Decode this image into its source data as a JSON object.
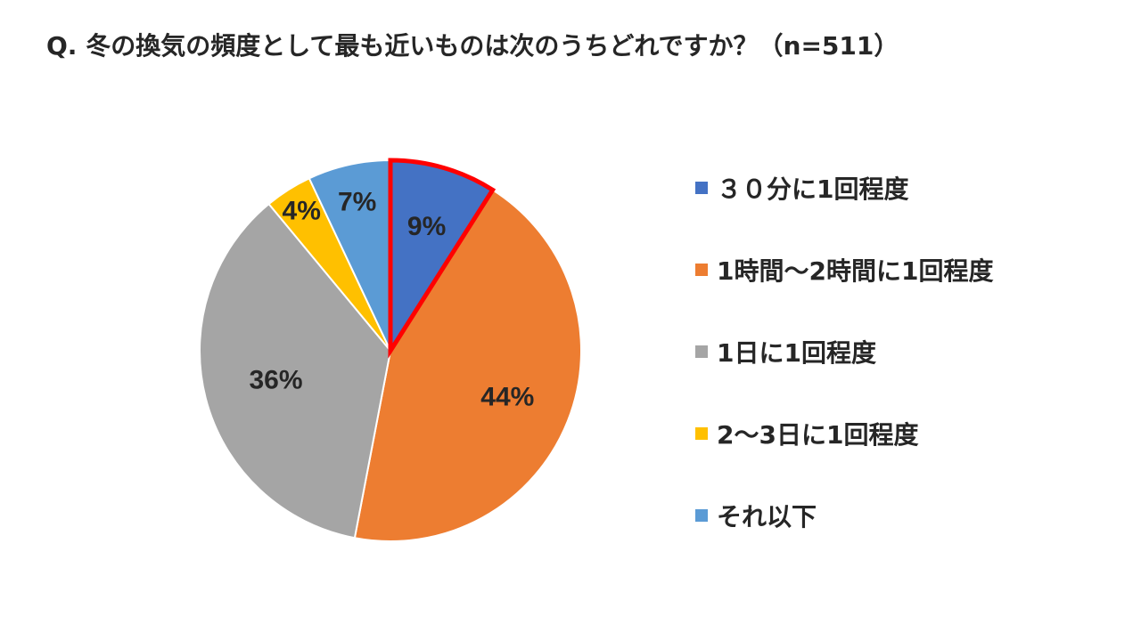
{
  "title": "Q. 冬の換気の頻度として最も近いものは次のうちどれですか？（n=511）",
  "highlight_color": "#FF0000",
  "chart_data": {
    "type": "pie",
    "categories": [
      "３０分に1回程度",
      "1時間〜2時間に1回程度",
      "1日に1回程度",
      "2〜3日に1回程度",
      "それ以下"
    ],
    "values": [
      9,
      44,
      36,
      4,
      7
    ],
    "labels": [
      "9%",
      "44%",
      "36%",
      "4%",
      "7%"
    ],
    "colors": [
      "#4472C4",
      "#ED7D31",
      "#A5A5A5",
      "#FFC000",
      "#5B9BD5"
    ],
    "highlighted_index": 0,
    "legend_position": "right",
    "start_angle": "12 o'clock",
    "direction": "clockwise"
  }
}
